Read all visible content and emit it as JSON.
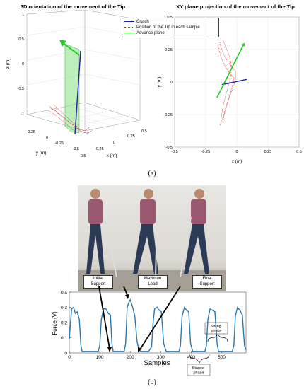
{
  "panel_a": {
    "caption": "(a)",
    "plot3d": {
      "title": "3D orientation of the movement of the Tip",
      "xlabel": "x (m)",
      "ylabel": "y (m)",
      "zlabel": "z (m)",
      "z_ticks": [
        "1",
        "0.5",
        "0",
        "-0.5",
        "-1"
      ],
      "y_ticks": [
        "0.25",
        "0",
        "-0.25",
        "-0.5"
      ],
      "x_ticks": [
        "-0.5",
        "-0.25",
        "0",
        "0.25",
        "0.5"
      ]
    },
    "legend": {
      "items": [
        {
          "label": "Crutch",
          "color": "#1f1fa8"
        },
        {
          "label": "Position of the Tip in each sample",
          "color": "#cc2020"
        },
        {
          "label": "Advance plane",
          "color": "#22cc22"
        }
      ]
    },
    "plotxy": {
      "title": "XY plane projection of the movement of the Tip",
      "xlabel": "x (m)",
      "ylabel": "y (m)",
      "y_ticks": [
        "0.5",
        "0.25",
        "0",
        "-0.25",
        "-0.5"
      ],
      "x_ticks": [
        "-0.5",
        "-0.25",
        "0",
        "0.25",
        "0.5"
      ]
    }
  },
  "panel_b": {
    "caption": "(b)",
    "photo_labels": [
      {
        "text": "Initial\nSupport"
      },
      {
        "text": "Maximun\nLoad"
      },
      {
        "text": "Final\nSupport"
      }
    ],
    "annotations": {
      "swing": "Swing\nphase",
      "stance": "Stance\nphase"
    }
  },
  "chart_data": [
    {
      "type": "line",
      "title": "XY plane projection of the movement of the Tip",
      "xlabel": "x (m)",
      "ylabel": "y (m)",
      "xlim": [
        -0.5,
        0.5
      ],
      "ylim": [
        -0.5,
        0.5
      ],
      "series": [
        {
          "name": "Crutch",
          "x": [
            -0.12,
            0.08
          ],
          "y": [
            -0.02,
            0.02
          ]
        },
        {
          "name": "Advance plane",
          "x": [
            -0.16,
            0.05
          ],
          "y": [
            -0.12,
            0.28
          ]
        }
      ]
    },
    {
      "type": "line",
      "title": "",
      "xlabel": "Samples",
      "ylabel": "Force (V)",
      "xlim": [
        0,
        580
      ],
      "ylim": [
        0,
        0.4
      ],
      "x_ticks": [
        0,
        100,
        200,
        300,
        400,
        500
      ],
      "y_ticks": [
        0,
        0.1,
        0.2,
        0.3,
        0.4
      ],
      "series": [
        {
          "x": [
            0,
            4,
            8,
            14,
            20,
            26,
            33,
            38,
            42,
            48,
            60,
            80,
            95,
            100,
            105,
            112,
            120,
            128,
            135,
            140,
            144,
            150,
            165,
            180,
            185,
            190,
            195,
            200,
            208,
            215,
            222,
            228,
            235,
            260,
            270,
            275,
            280,
            288,
            295,
            302,
            310,
            318,
            345,
            360,
            365,
            370,
            378,
            385,
            392,
            398,
            405,
            430,
            445,
            450,
            455,
            462,
            470,
            478,
            485,
            490,
            520,
            535,
            540,
            545,
            552,
            560,
            568,
            575,
            580
          ],
          "y": [
            0.09,
            0.2,
            0.29,
            0.3,
            0.26,
            0.27,
            0.22,
            0.05,
            0.01,
            0.01,
            0.01,
            0.01,
            0.01,
            0.05,
            0.22,
            0.29,
            0.29,
            0.26,
            0.25,
            0.06,
            0.01,
            0.01,
            0.01,
            0.01,
            0.06,
            0.3,
            0.33,
            0.35,
            0.3,
            0.24,
            0.08,
            0.02,
            0.01,
            0.01,
            0.04,
            0.2,
            0.29,
            0.3,
            0.28,
            0.27,
            0.06,
            0.01,
            0.01,
            0.01,
            0.05,
            0.24,
            0.3,
            0.28,
            0.27,
            0.06,
            0.01,
            0.01,
            0.01,
            0.05,
            0.22,
            0.29,
            0.28,
            0.27,
            0.06,
            0.01,
            0.01,
            0.01,
            0.05,
            0.24,
            0.3,
            0.28,
            0.25,
            0.05,
            0.02
          ]
        }
      ]
    }
  ]
}
